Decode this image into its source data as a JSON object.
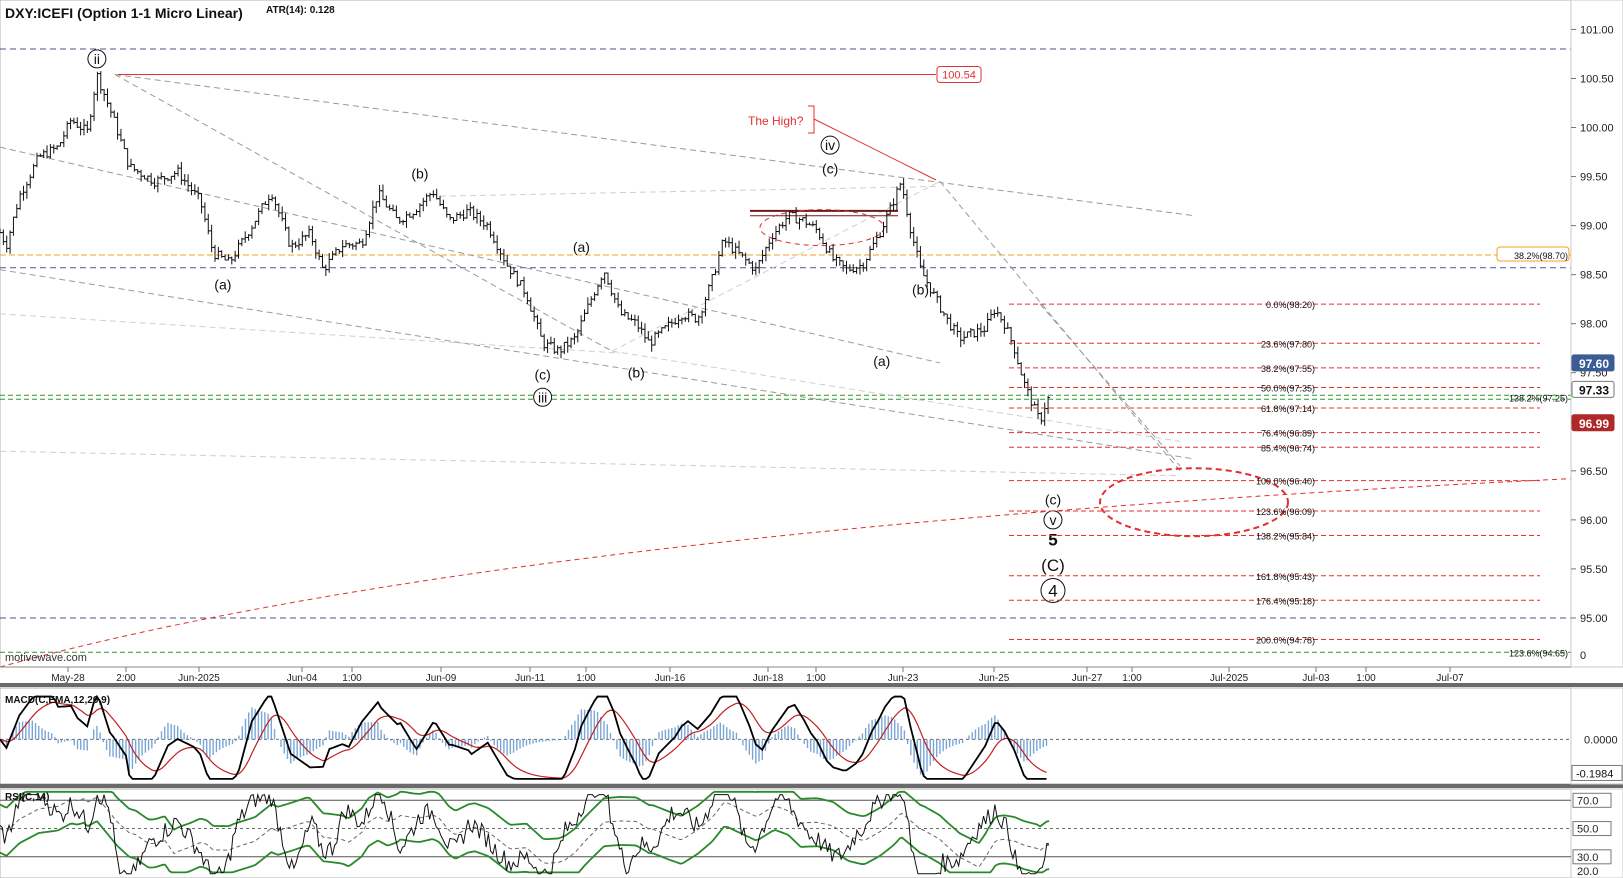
{
  "header": {
    "symbol_label": "DXY:ICEFI (Option 1-1 Micro Linear)",
    "atr_label": "ATR(14): 0.128"
  },
  "watermark": "motivewave.com",
  "colors": {
    "price_bar": "#111111",
    "fib_red": "#e03030",
    "orange_line": "#f0a020",
    "green_line": "#2a9a2a",
    "grey_dash": "#9a9a9a",
    "navy_dash": "#4a5a8a",
    "macd_line": "#000000",
    "signal_line": "#c02020",
    "histogram": "#7aa6d6",
    "rsi_band": "#2a8a2a",
    "badge_blue": "#3b5c94",
    "badge_red": "#b02828"
  },
  "chart_data": [
    {
      "type": "line",
      "name": "price",
      "title": "DXY:ICEFI (Option 1-1 Micro Linear)",
      "ylim": [
        94.5,
        101.3
      ],
      "y_ticks": [
        "101.00",
        "100.50",
        "100.00",
        "99.50",
        "99.00",
        "98.50",
        "98.00",
        "97.50",
        "97.00",
        "96.50",
        "96.00",
        "95.50",
        "95.00"
      ],
      "y_tick_values": [
        101.0,
        100.5,
        100.0,
        99.5,
        99.0,
        98.5,
        98.0,
        97.5,
        97.0,
        96.5,
        96.0,
        95.5,
        95.0
      ],
      "x_ticks": [
        "May-28",
        "2:00",
        "Jun-2025",
        "Jun-04",
        "1:00",
        "Jun-09",
        "Jun-11",
        "1:00",
        "Jun-16",
        "Jun-18",
        "1:00",
        "Jun-23",
        "Jun-25",
        "Jun-27",
        "1:00",
        "Jul-2025",
        "Jul-03",
        "1:00",
        "Jul-07"
      ],
      "price_path": [
        {
          "x": 0.0,
          "y": 98.93
        },
        {
          "x": 0.1,
          "y": 98.8
        },
        {
          "x": 0.3,
          "y": 99.3
        },
        {
          "x": 0.6,
          "y": 99.7
        },
        {
          "x": 0.9,
          "y": 99.8
        },
        {
          "x": 1.1,
          "y": 100.08
        },
        {
          "x": 1.35,
          "y": 99.95
        },
        {
          "x": 1.5,
          "y": 100.54
        },
        {
          "x": 1.75,
          "y": 100.1
        },
        {
          "x": 2.0,
          "y": 99.6
        },
        {
          "x": 2.4,
          "y": 99.45
        },
        {
          "x": 2.75,
          "y": 99.55
        },
        {
          "x": 3.1,
          "y": 99.25
        },
        {
          "x": 3.3,
          "y": 98.72
        },
        {
          "x": 3.55,
          "y": 98.62
        },
        {
          "x": 3.9,
          "y": 99.0
        },
        {
          "x": 4.2,
          "y": 99.35
        },
        {
          "x": 4.5,
          "y": 98.78
        },
        {
          "x": 4.8,
          "y": 98.92
        },
        {
          "x": 5.0,
          "y": 98.55
        },
        {
          "x": 5.3,
          "y": 98.8
        },
        {
          "x": 5.6,
          "y": 98.82
        },
        {
          "x": 5.85,
          "y": 99.33
        },
        {
          "x": 6.15,
          "y": 99.05
        },
        {
          "x": 6.4,
          "y": 99.15
        },
        {
          "x": 6.7,
          "y": 99.35
        },
        {
          "x": 6.95,
          "y": 99.05
        },
        {
          "x": 7.25,
          "y": 99.15
        },
        {
          "x": 7.55,
          "y": 99.0
        },
        {
          "x": 7.85,
          "y": 98.6
        },
        {
          "x": 8.15,
          "y": 98.3
        },
        {
          "x": 8.4,
          "y": 97.8
        },
        {
          "x": 8.65,
          "y": 97.72
        },
        {
          "x": 8.9,
          "y": 97.85
        },
        {
          "x": 9.15,
          "y": 98.25
        },
        {
          "x": 9.35,
          "y": 98.55
        },
        {
          "x": 9.6,
          "y": 98.1
        },
        {
          "x": 9.85,
          "y": 98.0
        },
        {
          "x": 10.05,
          "y": 97.8
        },
        {
          "x": 10.3,
          "y": 97.95
        },
        {
          "x": 10.55,
          "y": 98.1
        },
        {
          "x": 10.8,
          "y": 98.05
        },
        {
          "x": 11.0,
          "y": 98.4
        },
        {
          "x": 11.2,
          "y": 98.85
        },
        {
          "x": 11.45,
          "y": 98.7
        },
        {
          "x": 11.7,
          "y": 98.55
        },
        {
          "x": 11.95,
          "y": 98.9
        },
        {
          "x": 12.2,
          "y": 99.1
        },
        {
          "x": 12.45,
          "y": 99.05
        },
        {
          "x": 12.65,
          "y": 98.95
        },
        {
          "x": 12.9,
          "y": 98.65
        },
        {
          "x": 13.1,
          "y": 98.55
        },
        {
          "x": 13.35,
          "y": 98.6
        },
        {
          "x": 13.6,
          "y": 98.9
        },
        {
          "x": 13.8,
          "y": 99.2
        },
        {
          "x": 13.95,
          "y": 99.45
        },
        {
          "x": 14.1,
          "y": 98.95
        },
        {
          "x": 14.25,
          "y": 98.55
        },
        {
          "x": 14.45,
          "y": 98.3
        },
        {
          "x": 14.65,
          "y": 98.05
        },
        {
          "x": 14.85,
          "y": 97.85
        },
        {
          "x": 15.05,
          "y": 97.9
        },
        {
          "x": 15.25,
          "y": 97.95
        },
        {
          "x": 15.4,
          "y": 98.15
        },
        {
          "x": 15.55,
          "y": 98.0
        },
        {
          "x": 15.7,
          "y": 97.75
        },
        {
          "x": 15.85,
          "y": 97.4
        },
        {
          "x": 16.0,
          "y": 97.15
        },
        {
          "x": 16.1,
          "y": 97.0
        },
        {
          "x": 16.2,
          "y": 97.22
        },
        {
          "x": 16.25,
          "y": 97.25
        }
      ],
      "hlines": [
        {
          "value": 100.8,
          "style": "navy-dash"
        },
        {
          "value": 98.7,
          "style": "orange"
        },
        {
          "value": 98.57,
          "style": "navy-dash"
        },
        {
          "value": 97.27,
          "style": "green"
        },
        {
          "value": 97.23,
          "style": "green"
        },
        {
          "value": 94.65,
          "style": "green"
        },
        {
          "value": 95.0,
          "style": "navy-dash"
        }
      ],
      "high_line": {
        "value": 100.54,
        "label": "100.54"
      },
      "fib_levels": [
        {
          "label": "0.0%(98.20)",
          "value": 98.2
        },
        {
          "label": "23.6%(97.80)",
          "value": 97.8
        },
        {
          "label": "38.2%(97.55)",
          "value": 97.55
        },
        {
          "label": "50.0%(97.35)",
          "value": 97.35
        },
        {
          "label": "61.8%(97.14)",
          "value": 97.14
        },
        {
          "label": "76.4%(96.89)",
          "value": 96.89
        },
        {
          "label": "85.4%(96.74)",
          "value": 96.74
        },
        {
          "label": "100.0%(96.40)",
          "value": 96.4
        },
        {
          "label": "123.6%(96.09)",
          "value": 96.09
        },
        {
          "label": "138.2%(95.84)",
          "value": 95.84
        },
        {
          "label": "161.8%(95.43)",
          "value": 95.43
        },
        {
          "label": "176.4%(95.18)",
          "value": 95.18
        },
        {
          "label": "200.0%(94.78)",
          "value": 94.78
        }
      ],
      "right_labels": [
        {
          "label": "38.2%(98.70)",
          "value": 98.7
        },
        {
          "label": "138.2%(97.25)",
          "value": 97.25
        },
        {
          "label": "123.6%(94.65)",
          "value": 94.65
        }
      ],
      "price_badges": [
        {
          "label": "97.60",
          "value": 97.6,
          "style": "blue"
        },
        {
          "label": "97.33",
          "value": 97.33,
          "style": "white"
        },
        {
          "label": "96.99",
          "value": 96.99,
          "style": "red"
        }
      ],
      "wave_labels": [
        {
          "text": "ii",
          "circled": true,
          "x": 1.5,
          "y": 100.7
        },
        {
          "text": "(a)",
          "x": 3.45,
          "y": 98.4
        },
        {
          "text": "(b)",
          "x": 6.5,
          "y": 99.53
        },
        {
          "text": "(c)",
          "x": 8.4,
          "y": 97.48
        },
        {
          "text": "iii",
          "circled": true,
          "x": 8.4,
          "y": 97.25
        },
        {
          "text": "(a)",
          "x": 9.0,
          "y": 98.78
        },
        {
          "text": "(b)",
          "x": 9.85,
          "y": 97.5
        },
        {
          "text": "iv",
          "circled": true,
          "x": 12.85,
          "y": 99.82
        },
        {
          "text": "(c)",
          "x": 12.85,
          "y": 99.58
        },
        {
          "text": "(a)",
          "x": 13.65,
          "y": 97.62
        },
        {
          "text": "(b)",
          "x": 14.25,
          "y": 98.35
        },
        {
          "text": "(c)",
          "x": 16.3,
          "y": 96.21
        },
        {
          "text": "v",
          "circled": true,
          "x": 16.3,
          "y": 96.0
        },
        {
          "text": "5",
          "x": 16.3,
          "y": 95.8
        },
        {
          "text": "(C)",
          "x": 16.3,
          "y": 95.54
        },
        {
          "text": "4",
          "circled": true,
          "x": 16.3,
          "y": 95.28
        }
      ],
      "callout": {
        "text": "The High?"
      }
    },
    {
      "type": "line",
      "name": "MACD",
      "title": "MACD(C,EMA,12,26,9)",
      "ylim": [
        -0.26,
        0.3
      ],
      "y_ticks": [
        "0.0000"
      ],
      "y_tick_values": [
        0.0
      ],
      "last_value_label": "-0.1984",
      "last_value": -0.1984
    },
    {
      "type": "line",
      "name": "RSI",
      "title": "RSI(C,14)",
      "ylim": [
        15,
        78
      ],
      "y_ticks": [
        "70.0",
        "50.0",
        "30.0",
        "20.0"
      ],
      "y_tick_values": [
        70,
        50,
        30,
        20
      ]
    }
  ]
}
